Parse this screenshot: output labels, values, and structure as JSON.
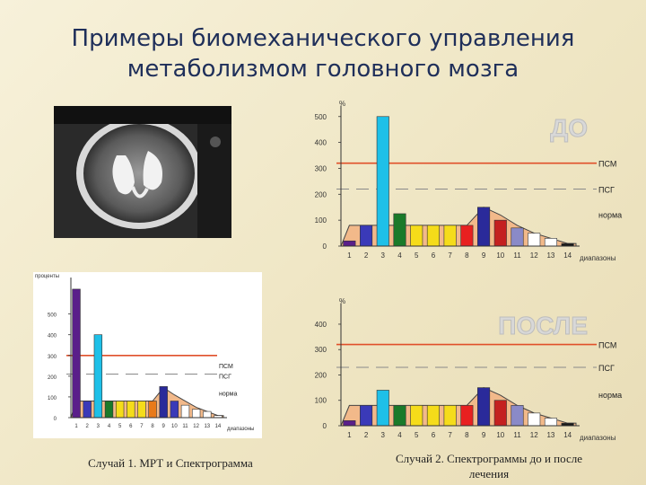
{
  "slide": {
    "title_line1": "Примеры биомеханического управления",
    "title_line2": "метаболизмом головного мозга"
  },
  "captions": {
    "case1": "Случай 1. МРТ и Спектрограмма",
    "case2_line1": "Случай 2. Спектрограммы до и после",
    "case2_line2": "лечения"
  },
  "colors": {
    "psm_line": "#e0502a",
    "psg_line": "#8a8a8a",
    "norm_fill": "#f2b98a",
    "norm_line": "#444444",
    "label_big": "#d8d8d8"
  },
  "chart_data": [
    {
      "id": "case1",
      "type": "bar",
      "categories": [
        "1",
        "2",
        "3",
        "4",
        "5",
        "6",
        "7",
        "8",
        "9",
        "10",
        "11",
        "12",
        "13",
        "14"
      ],
      "values": [
        620,
        80,
        400,
        80,
        80,
        80,
        80,
        80,
        150,
        80,
        60,
        40,
        30,
        10
      ],
      "bar_colors": [
        "#5a1f8a",
        "#3a3ab8",
        "#1ec0e8",
        "#1a7a2a",
        "#f5dc1a",
        "#f5dc1a",
        "#f5dc1a",
        "#e87a1a",
        "#2a2a9a",
        "#3a3ab8",
        "#ffffff",
        "#ffffff",
        "#ffffff",
        "#ffffff"
      ],
      "norm": [
        80,
        80,
        80,
        80,
        80,
        80,
        80,
        80,
        145,
        110,
        80,
        50,
        30,
        10
      ],
      "ylabel": "проценты",
      "xlabel": "диапазоны",
      "yticks": [
        0,
        100,
        200,
        300,
        400,
        500
      ],
      "ylim": [
        0,
        650
      ],
      "psm": 300,
      "psg": 210,
      "labels": {
        "psm": "ПСМ",
        "psg": "ПСГ",
        "norm": "норма"
      }
    },
    {
      "id": "before",
      "type": "bar",
      "big_label": "ДО",
      "categories": [
        "1",
        "2",
        "3",
        "4",
        "5",
        "6",
        "7",
        "8",
        "9",
        "10",
        "11",
        "12",
        "13",
        "14"
      ],
      "values": [
        20,
        80,
        500,
        125,
        80,
        80,
        80,
        80,
        150,
        100,
        70,
        50,
        30,
        10
      ],
      "bar_colors": [
        "#5a1f8a",
        "#3a3ab8",
        "#1ec0e8",
        "#1a7a2a",
        "#f5dc1a",
        "#f5dc1a",
        "#f5dc1a",
        "#e82020",
        "#2a2a9a",
        "#c42020",
        "#8a8ac8",
        "#ffffff",
        "#ffffff",
        "#1a1a1a"
      ],
      "norm": [
        80,
        80,
        80,
        80,
        80,
        80,
        80,
        80,
        150,
        120,
        80,
        50,
        30,
        10
      ],
      "ylabel": "%",
      "xlabel": "диапазоны",
      "yticks": [
        0,
        100,
        200,
        300,
        400,
        500
      ],
      "ylim": [
        0,
        520
      ],
      "psm": 320,
      "psg": 220,
      "labels": {
        "psm": "ПСМ",
        "psg": "ПСГ",
        "norm": "норма"
      }
    },
    {
      "id": "after",
      "type": "bar",
      "big_label": "ПОСЛЕ",
      "categories": [
        "1",
        "2",
        "3",
        "4",
        "5",
        "6",
        "7",
        "8",
        "9",
        "10",
        "11",
        "12",
        "13",
        "14"
      ],
      "values": [
        20,
        80,
        140,
        80,
        80,
        80,
        80,
        80,
        150,
        100,
        80,
        50,
        30,
        10
      ],
      "bar_colors": [
        "#5a1f8a",
        "#3a3ab8",
        "#1ec0e8",
        "#1a7a2a",
        "#f5dc1a",
        "#f5dc1a",
        "#f5dc1a",
        "#e82020",
        "#2a2a9a",
        "#c42020",
        "#8a8ac8",
        "#ffffff",
        "#ffffff",
        "#1a1a1a"
      ],
      "norm": [
        80,
        80,
        80,
        80,
        80,
        80,
        80,
        80,
        150,
        120,
        80,
        50,
        30,
        10
      ],
      "ylabel": "%",
      "xlabel": "диапазоны",
      "yticks": [
        0,
        100,
        200,
        300,
        400
      ],
      "ylim": [
        0,
        460
      ],
      "psm": 320,
      "psg": 230,
      "labels": {
        "psm": "ПСМ",
        "psg": "ПСГ",
        "norm": "норма"
      }
    }
  ]
}
